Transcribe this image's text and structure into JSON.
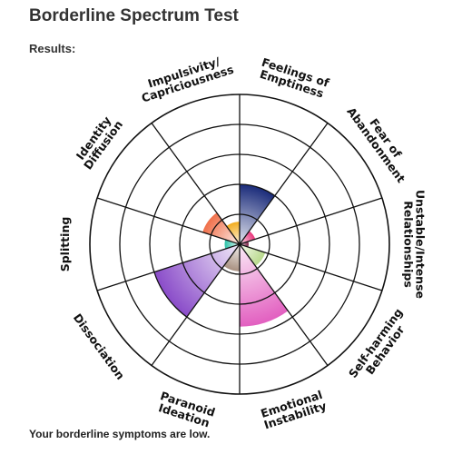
{
  "page": {
    "title": "Borderline Spectrum Test",
    "results_label": "Results:",
    "summary": "Your borderline symptoms are low."
  },
  "chart_data": {
    "type": "polar-area",
    "title": "",
    "max": 5,
    "rings": 5,
    "grid": true,
    "categories": [
      {
        "label": [
          "Feelings of",
          "Emptiness"
        ],
        "value": 2.0,
        "color": "#1a2b7a"
      },
      {
        "label": [
          "Fear of",
          "Abandonment"
        ],
        "value": 0.55,
        "color": "#e8357a"
      },
      {
        "label": [
          "Unstable/Intense",
          "Relationships"
        ],
        "value": 0.3,
        "color": "#7a1f44"
      },
      {
        "label": [
          "Self-harming",
          "Behavior"
        ],
        "value": 0.9,
        "color": "#b9d98c"
      },
      {
        "label": [
          "Emotional",
          "Instability"
        ],
        "value": 2.75,
        "color": "#e25fc0"
      },
      {
        "label": [
          "Paranoid",
          "Ideation"
        ],
        "value": 0.9,
        "color": "#a89080"
      },
      {
        "label": [
          "Dissociation"
        ],
        "value": 3.0,
        "color": "#8a4cc9"
      },
      {
        "label": [
          "Splitting"
        ],
        "value": 0.5,
        "color": "#2cc2a8"
      },
      {
        "label": [
          "Identity",
          "Diffusion"
        ],
        "value": 1.3,
        "color": "#f0704a"
      },
      {
        "label": [
          "Impulsivity/",
          "Capriciousness"
        ],
        "value": 0.75,
        "color": "#f2ad1f"
      }
    ]
  }
}
